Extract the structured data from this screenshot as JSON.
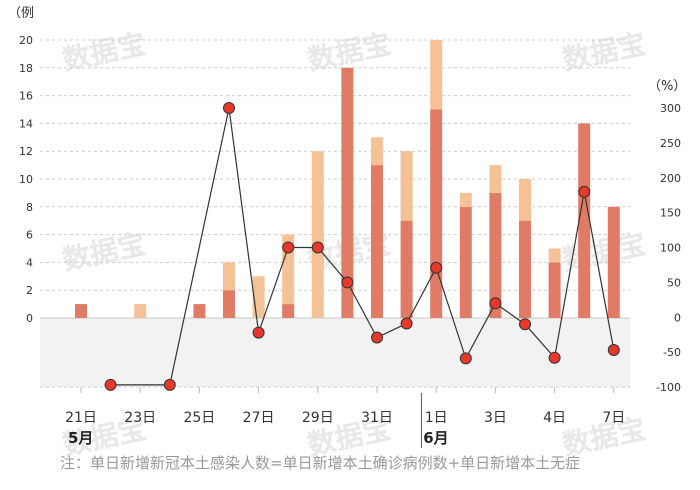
{
  "chart_data": {
    "type": "bar+line",
    "left_axis": {
      "unit_label": "（例",
      "ticks": [
        "20",
        "18",
        "16",
        "14",
        "12",
        "10",
        "8",
        "6",
        "4",
        "2",
        "0"
      ],
      "ylim": [
        0,
        20
      ]
    },
    "right_axis": {
      "unit_label": "（%）",
      "ticks": [
        "300",
        "250",
        "200",
        "150",
        "100",
        "50",
        "0",
        "-50",
        "-100"
      ],
      "ylim": [
        -100,
        300
      ]
    },
    "x_labels": [
      {
        "index": 0,
        "text": "21日"
      },
      {
        "index": 2,
        "text": "23日"
      },
      {
        "index": 4,
        "text": "25日"
      },
      {
        "index": 6,
        "text": "27日"
      },
      {
        "index": 8,
        "text": "29日"
      },
      {
        "index": 10,
        "text": "31日"
      },
      {
        "index": 12,
        "text": "1日"
      },
      {
        "index": 14,
        "text": "3日"
      },
      {
        "index": 16,
        "text": "4日"
      },
      {
        "index": 18,
        "text": "7日"
      }
    ],
    "month_labels": [
      {
        "index": 0,
        "text": "5月"
      },
      {
        "index": 12,
        "text": "6月"
      }
    ],
    "month_divider_after_index": 11,
    "bar_series": [
      {
        "color": "#e07b65",
        "values": [
          1,
          0,
          0,
          0,
          1,
          2,
          0,
          1,
          0,
          18,
          11,
          7,
          15,
          8,
          9,
          7,
          4,
          14,
          8
        ]
      },
      {
        "color": "#f5c298",
        "values": [
          0,
          0,
          1,
          0,
          0,
          2,
          3,
          5,
          12,
          0,
          2,
          5,
          5,
          1,
          2,
          3,
          1,
          0,
          0
        ]
      }
    ],
    "line_series": {
      "color": "#333333",
      "marker_color": "#e8382c",
      "values": [
        null,
        -97,
        null,
        -97,
        null,
        300,
        -22,
        100,
        100,
        50,
        -29,
        -9,
        71,
        -59,
        20,
        -10,
        -58,
        180,
        -47
      ]
    },
    "negative_band_color": "#f2f2f2"
  },
  "watermark": {
    "text": "数据宝",
    "color": "#e8e8e8"
  },
  "footnote": "注：单日新增新冠本土感染人数=单日新增本土确诊病例数+单日新增本土无症"
}
